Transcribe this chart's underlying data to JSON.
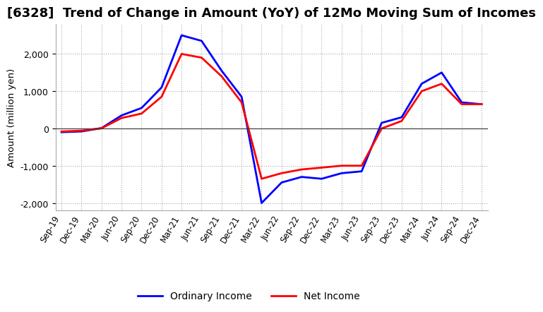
{
  "title": "[6328]  Trend of Change in Amount (YoY) of 12Mo Moving Sum of Incomes",
  "ylabel": "Amount (million yen)",
  "background_color": "#ffffff",
  "grid_color": "#aaaaaa",
  "x_labels": [
    "Sep-19",
    "Dec-19",
    "Mar-20",
    "Jun-20",
    "Sep-20",
    "Dec-20",
    "Mar-21",
    "Jun-21",
    "Sep-21",
    "Dec-21",
    "Mar-22",
    "Jun-22",
    "Sep-22",
    "Dec-22",
    "Mar-23",
    "Jun-23",
    "Sep-23",
    "Dec-23",
    "Mar-24",
    "Jun-24",
    "Sep-24",
    "Dec-24"
  ],
  "ordinary_income": [
    -100,
    -80,
    10,
    350,
    550,
    1100,
    2500,
    2350,
    1550,
    850,
    -2000,
    -1450,
    -1300,
    -1350,
    -1200,
    -1150,
    150,
    300,
    1200,
    1500,
    700,
    650
  ],
  "net_income": [
    -80,
    -60,
    5,
    280,
    400,
    850,
    2000,
    1900,
    1400,
    700,
    -1350,
    -1200,
    -1100,
    -1050,
    -1000,
    -1000,
    0,
    200,
    1000,
    1200,
    650,
    650
  ],
  "ordinary_color": "#0000ff",
  "net_color": "#ff0000",
  "ylim": [
    -2200,
    2800
  ],
  "yticks": [
    -2000,
    -1000,
    0,
    1000,
    2000
  ],
  "line_width": 2.0,
  "title_fontsize": 13,
  "legend_fontsize": 10
}
